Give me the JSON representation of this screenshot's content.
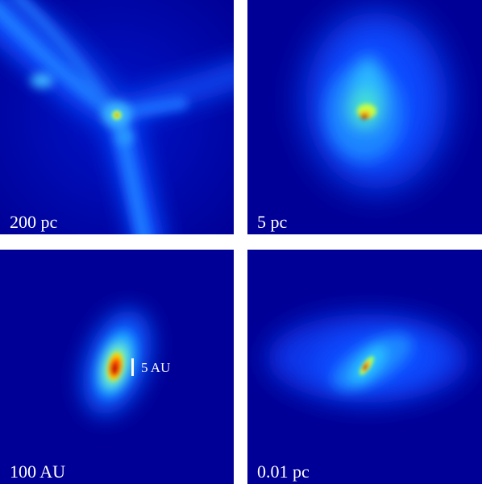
{
  "panels": [
    {
      "id": "top-left",
      "scale_label": "200 pc"
    },
    {
      "id": "top-right",
      "scale_label": "5 pc"
    },
    {
      "id": "bottom-left",
      "scale_label": "100 AU",
      "inset_label": "5 AU"
    },
    {
      "id": "bottom-right",
      "scale_label": "0.01 pc"
    }
  ],
  "colors": {
    "background": "#00008c",
    "gap": "#ffffff",
    "label": "#ffffff"
  }
}
